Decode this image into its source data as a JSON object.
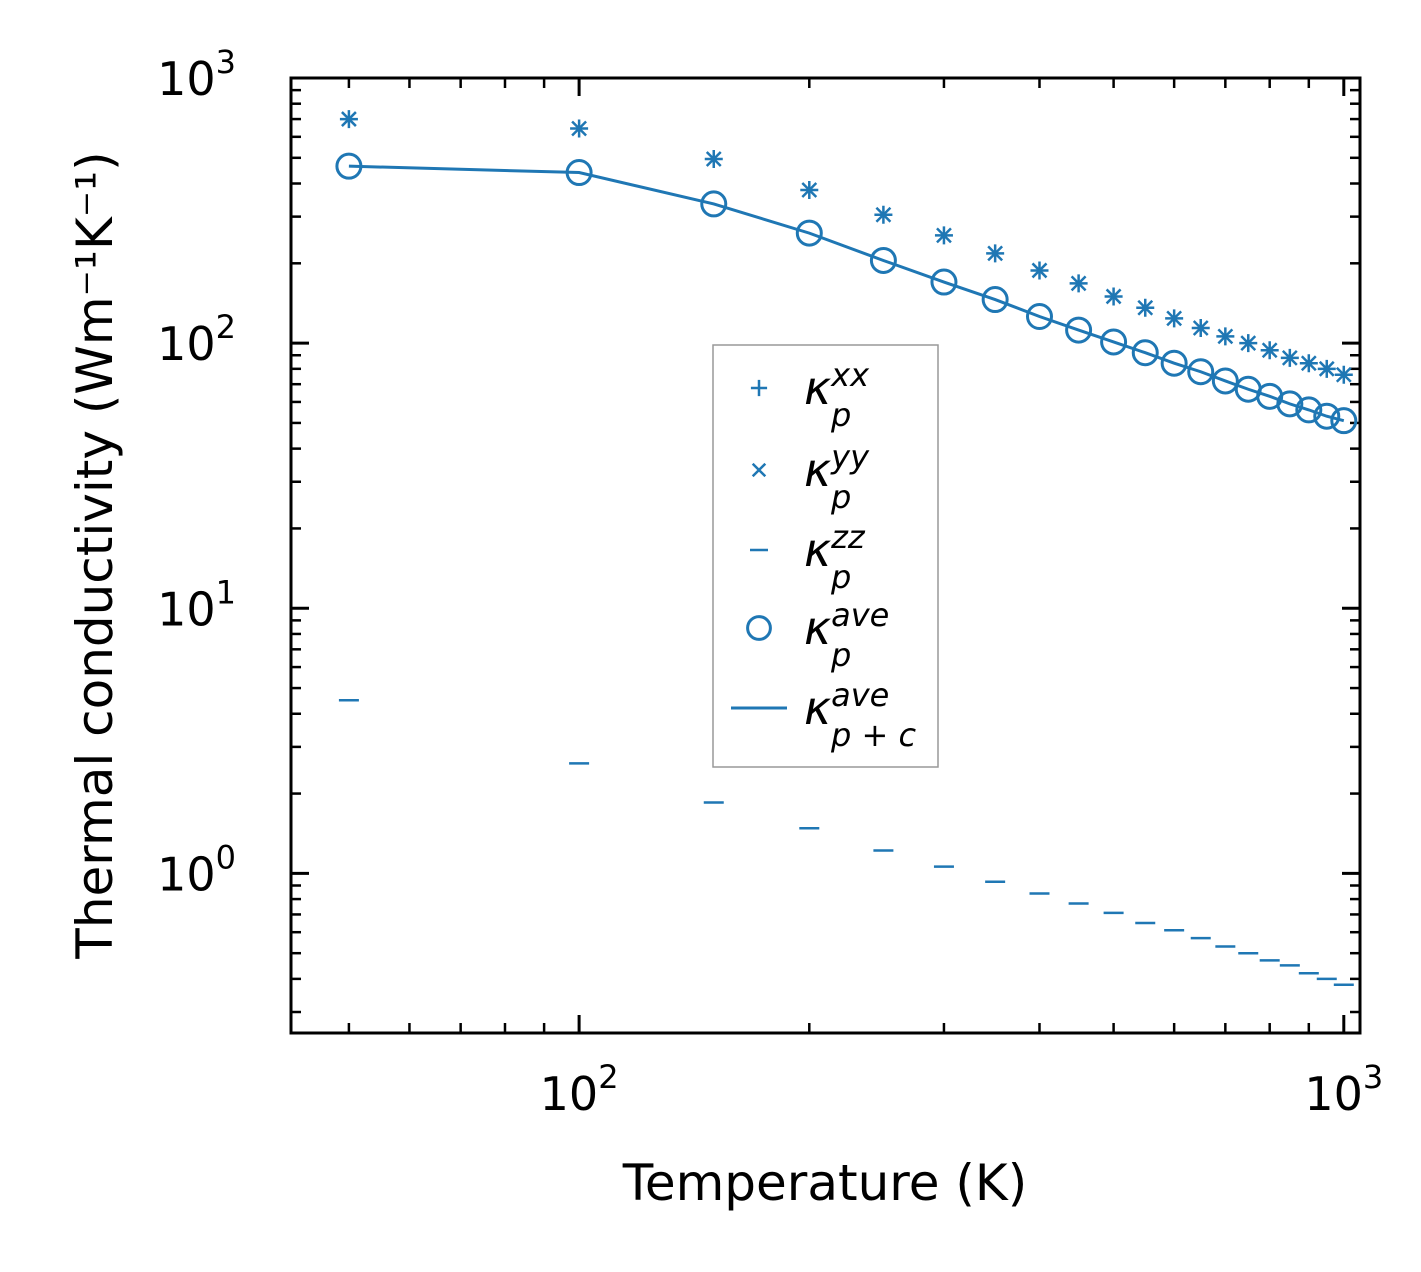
{
  "chart_data": {
    "type": "line",
    "title": "",
    "xlabel": "Temperature (K)",
    "ylabel": "Thermal conductivity (Wm⁻¹K⁻¹)",
    "xscale": "log",
    "yscale": "log",
    "xlim": [
      42,
      1050
    ],
    "ylim": [
      0.25,
      1000
    ],
    "x_ticks": [
      {
        "base": "10",
        "exp": "2",
        "value": 100
      },
      {
        "base": "10",
        "exp": "3",
        "value": 1000
      }
    ],
    "y_ticks": [
      {
        "base": "10",
        "exp": "0",
        "value": 1
      },
      {
        "base": "10",
        "exp": "1",
        "value": 10
      },
      {
        "base": "10",
        "exp": "2",
        "value": 100
      },
      {
        "base": "10",
        "exp": "3",
        "value": 1000
      }
    ],
    "x": [
      50,
      100,
      150,
      200,
      250,
      300,
      350,
      400,
      450,
      500,
      550,
      600,
      650,
      700,
      750,
      800,
      850,
      900,
      950,
      1000
    ],
    "series": [
      {
        "name": "kappa_p_xx",
        "symbol": "κ",
        "sub": "p",
        "sup": "xx",
        "marker": "plus",
        "values": [
          700,
          645,
          495,
          378,
          305,
          255,
          218,
          188,
          168,
          150,
          136,
          124,
          114,
          106,
          100,
          94,
          88,
          84,
          80,
          76
        ]
      },
      {
        "name": "kappa_p_yy",
        "symbol": "κ",
        "sub": "p",
        "sup": "yy",
        "marker": "x",
        "values": [
          700,
          645,
          495,
          378,
          305,
          255,
          218,
          188,
          168,
          150,
          136,
          124,
          114,
          106,
          100,
          94,
          88,
          84,
          80,
          76
        ]
      },
      {
        "name": "kappa_p_zz",
        "symbol": "κ",
        "sub": "p",
        "sup": "zz",
        "marker": "hline",
        "values": [
          4.5,
          2.6,
          1.85,
          1.48,
          1.22,
          1.06,
          0.93,
          0.84,
          0.77,
          0.71,
          0.65,
          0.61,
          0.57,
          0.53,
          0.5,
          0.47,
          0.45,
          0.42,
          0.4,
          0.38
        ]
      },
      {
        "name": "kappa_p_ave",
        "symbol": "κ",
        "sub": "p",
        "sup": "ave",
        "marker": "circle",
        "values": [
          465,
          440,
          335,
          260,
          205,
          170,
          146,
          126,
          112,
          101,
          92,
          84,
          78,
          72,
          67,
          63,
          59,
          56,
          53,
          51
        ]
      },
      {
        "name": "kappa_pc_ave",
        "symbol": "κ",
        "sub": "p + c",
        "sup": "ave",
        "marker": "line",
        "values": [
          465,
          440,
          335,
          260,
          205,
          170,
          146,
          126,
          112,
          101,
          92,
          84,
          78,
          72,
          67,
          63,
          59,
          56,
          53,
          51
        ]
      }
    ],
    "legend_position": "center",
    "color": "#1f77b4"
  }
}
